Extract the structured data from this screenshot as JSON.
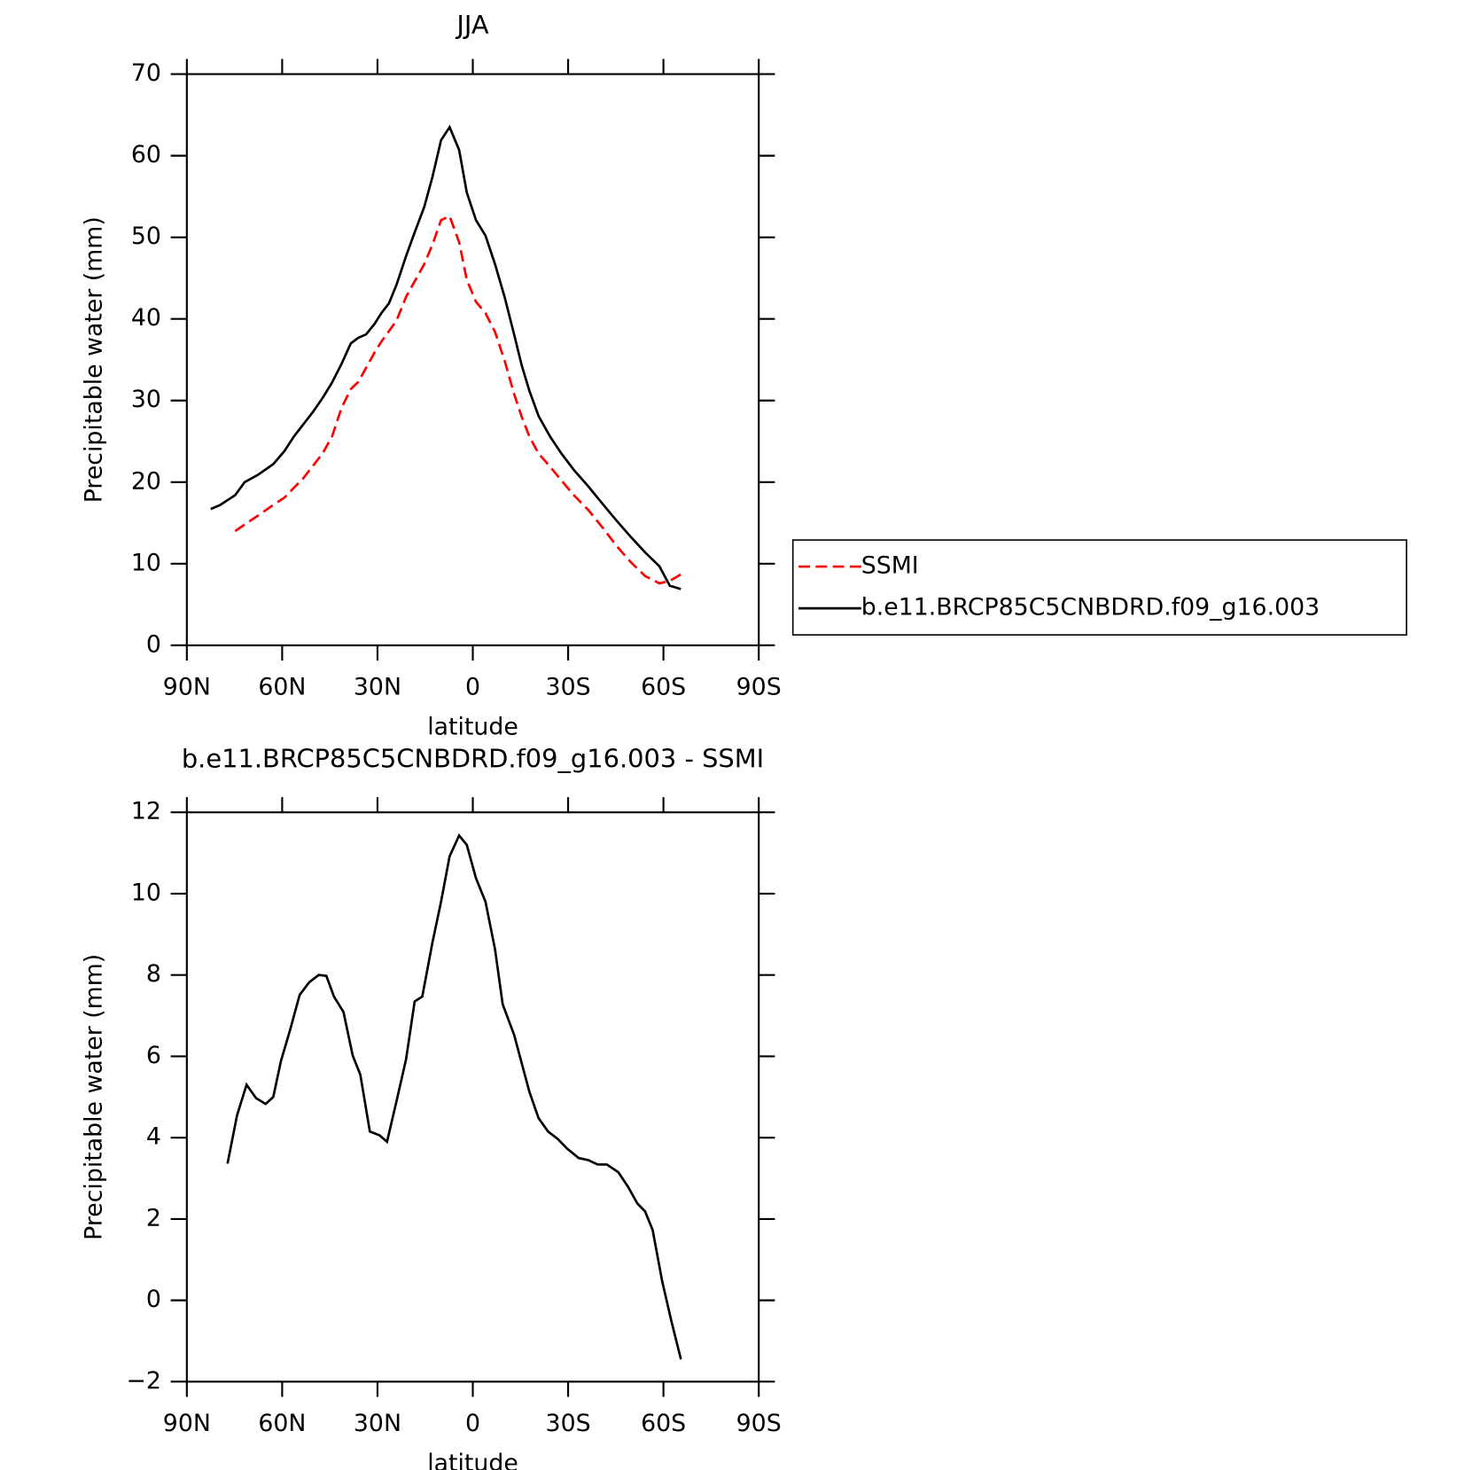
{
  "chart_data": [
    {
      "type": "line",
      "title": "JJA",
      "xlabel": "latitude",
      "ylabel": "Precipitable water (mm)",
      "xlim": [
        90,
        -90
      ],
      "xticks": [
        {
          "value": 90,
          "label": "90N"
        },
        {
          "value": 60,
          "label": "60N"
        },
        {
          "value": 30,
          "label": "30N"
        },
        0,
        {
          "value": -30,
          "label": "30S"
        },
        {
          "value": -60,
          "label": "60S"
        },
        {
          "value": -90,
          "label": "90S"
        }
      ],
      "ylim": [
        0,
        70
      ],
      "yticks": [
        0,
        10,
        20,
        30,
        40,
        50,
        60,
        70
      ],
      "legend": "outside-right",
      "x": [
        82.5,
        79.5,
        74.8,
        71.8,
        67.6,
        62.8,
        59.3,
        56.3,
        53.3,
        50.3,
        47.3,
        44.3,
        41.3,
        38.4,
        36.0,
        33.6,
        30.9,
        28.8,
        26.4,
        24.0,
        21.0,
        18.3,
        15.3,
        12.7,
        10.0,
        7.3,
        4.3,
        1.9,
        -1.0,
        -4.0,
        -7.0,
        -10.0,
        -13.0,
        -15.4,
        -17.8,
        -20.7,
        -24.3,
        -27.9,
        -31.8,
        -36.3,
        -40.7,
        -45.2,
        -49.7,
        -54.2,
        -58.7,
        -62.0,
        -65.5
      ],
      "series": [
        {
          "name": "SSMI",
          "color": "#ff0000",
          "line_style": "dashed",
          "values": [
            null,
            null,
            14.0,
            14.8,
            15.9,
            17.2,
            18.1,
            19.3,
            20.5,
            22.0,
            23.5,
            25.6,
            29.1,
            31.4,
            32.3,
            34.0,
            35.9,
            37.2,
            38.5,
            39.8,
            42.7,
            44.6,
            46.7,
            49.1,
            52.1,
            52.6,
            49.4,
            44.8,
            42.1,
            40.7,
            38.4,
            34.9,
            30.8,
            28.0,
            25.6,
            23.5,
            21.9,
            20.2,
            18.4,
            16.6,
            14.5,
            12.2,
            10.2,
            8.5,
            7.6,
            7.9,
            8.7
          ]
        },
        {
          "name": "b.e11.BRCP85C5CNBDRD.f09_g16.003",
          "color": "#000000",
          "line_style": "solid",
          "values": [
            16.7,
            17.2,
            18.4,
            20.0,
            20.9,
            22.2,
            23.8,
            25.6,
            27.1,
            28.6,
            30.3,
            32.2,
            34.5,
            37.0,
            37.7,
            38.1,
            39.4,
            40.7,
            41.9,
            44.2,
            47.7,
            50.6,
            53.7,
            57.4,
            61.9,
            63.5,
            60.7,
            55.5,
            52.1,
            50.2,
            46.7,
            42.7,
            38.1,
            34.3,
            31.2,
            28.1,
            25.6,
            23.5,
            21.5,
            19.5,
            17.4,
            15.3,
            13.3,
            11.4,
            9.7,
            7.3,
            6.9
          ]
        }
      ]
    },
    {
      "type": "line",
      "title": "b.e11.BRCP85C5CNBDRD.f09_g16.003 - SSMI",
      "xlabel": "latitude",
      "ylabel": "Precipitable water (mm)",
      "xlim": [
        90,
        -90
      ],
      "xticks": [
        {
          "value": 90,
          "label": "90N"
        },
        {
          "value": 60,
          "label": "60N"
        },
        {
          "value": 30,
          "label": "30N"
        },
        0,
        {
          "value": -30,
          "label": "30S"
        },
        {
          "value": -60,
          "label": "60S"
        },
        {
          "value": -90,
          "label": "90S"
        }
      ],
      "ylim": [
        -2,
        12
      ],
      "yticks": [
        {
          "value": -2,
          "label": "−2"
        },
        0,
        2,
        4,
        6,
        8,
        10,
        12
      ],
      "x": [
        77.2,
        74.2,
        71.2,
        68.2,
        65.2,
        62.8,
        60.4,
        57.5,
        54.5,
        51.5,
        48.5,
        46.1,
        43.7,
        40.7,
        37.8,
        35.4,
        32.4,
        29.4,
        27.0,
        24.0,
        21.0,
        18.3,
        15.9,
        12.7,
        10.0,
        7.3,
        4.3,
        1.9,
        -1.0,
        -4.0,
        -7.0,
        -9.4,
        -13.0,
        -15.4,
        -17.8,
        -20.7,
        -23.7,
        -26.7,
        -29.7,
        -33.3,
        -36.3,
        -39.3,
        -42.2,
        -45.8,
        -48.8,
        -51.8,
        -54.2,
        -56.6,
        -59.6,
        -62.5,
        -65.5
      ],
      "series": [
        {
          "color": "#000000",
          "line_style": "solid",
          "values": [
            3.36,
            4.55,
            5.3,
            4.97,
            4.83,
            5.0,
            5.88,
            6.65,
            7.51,
            7.82,
            8.0,
            7.98,
            7.47,
            7.09,
            6.02,
            5.55,
            4.15,
            4.06,
            3.9,
            4.9,
            5.93,
            7.35,
            7.47,
            8.8,
            9.8,
            10.92,
            11.43,
            11.2,
            10.38,
            9.8,
            8.63,
            7.28,
            6.53,
            5.83,
            5.13,
            4.48,
            4.15,
            3.97,
            3.73,
            3.5,
            3.45,
            3.34,
            3.34,
            3.15,
            2.8,
            2.38,
            2.19,
            1.73,
            0.47,
            -0.51,
            -1.45
          ]
        }
      ]
    }
  ]
}
